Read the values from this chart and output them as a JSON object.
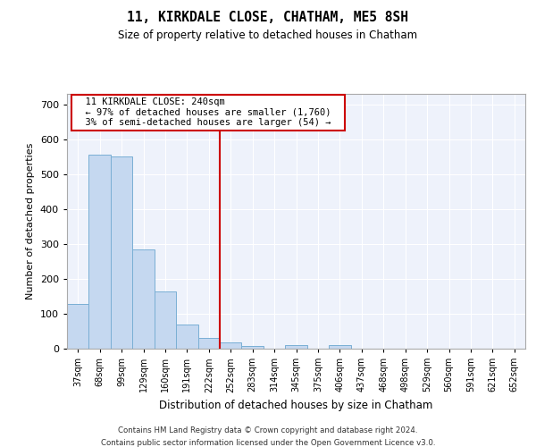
{
  "title": "11, KIRKDALE CLOSE, CHATHAM, ME5 8SH",
  "subtitle": "Size of property relative to detached houses in Chatham",
  "xlabel": "Distribution of detached houses by size in Chatham",
  "ylabel": "Number of detached properties",
  "bar_color": "#c5d8f0",
  "bar_edge_color": "#7aafd4",
  "background_color": "#eef2fb",
  "grid_color": "#ffffff",
  "categories": [
    "37sqm",
    "68sqm",
    "99sqm",
    "129sqm",
    "160sqm",
    "191sqm",
    "222sqm",
    "252sqm",
    "283sqm",
    "314sqm",
    "345sqm",
    "375sqm",
    "406sqm",
    "437sqm",
    "468sqm",
    "498sqm",
    "529sqm",
    "560sqm",
    "591sqm",
    "621sqm",
    "652sqm"
  ],
  "values": [
    127,
    555,
    550,
    285,
    165,
    70,
    30,
    18,
    8,
    0,
    10,
    0,
    10,
    0,
    0,
    0,
    0,
    0,
    0,
    0,
    0
  ],
  "ylim": [
    0,
    730
  ],
  "yticks": [
    0,
    100,
    200,
    300,
    400,
    500,
    600,
    700
  ],
  "vline_x": 6.5,
  "vline_color": "#cc0000",
  "annotation_text": "  11 KIRKDALE CLOSE: 240sqm  \n  ← 97% of detached houses are smaller (1,760)  \n  3% of semi-detached houses are larger (54) →  ",
  "annotation_box_color": "#ffffff",
  "annotation_box_edge": "#cc0000",
  "footer_line1": "Contains HM Land Registry data © Crown copyright and database right 2024.",
  "footer_line2": "Contains public sector information licensed under the Open Government Licence v3.0."
}
